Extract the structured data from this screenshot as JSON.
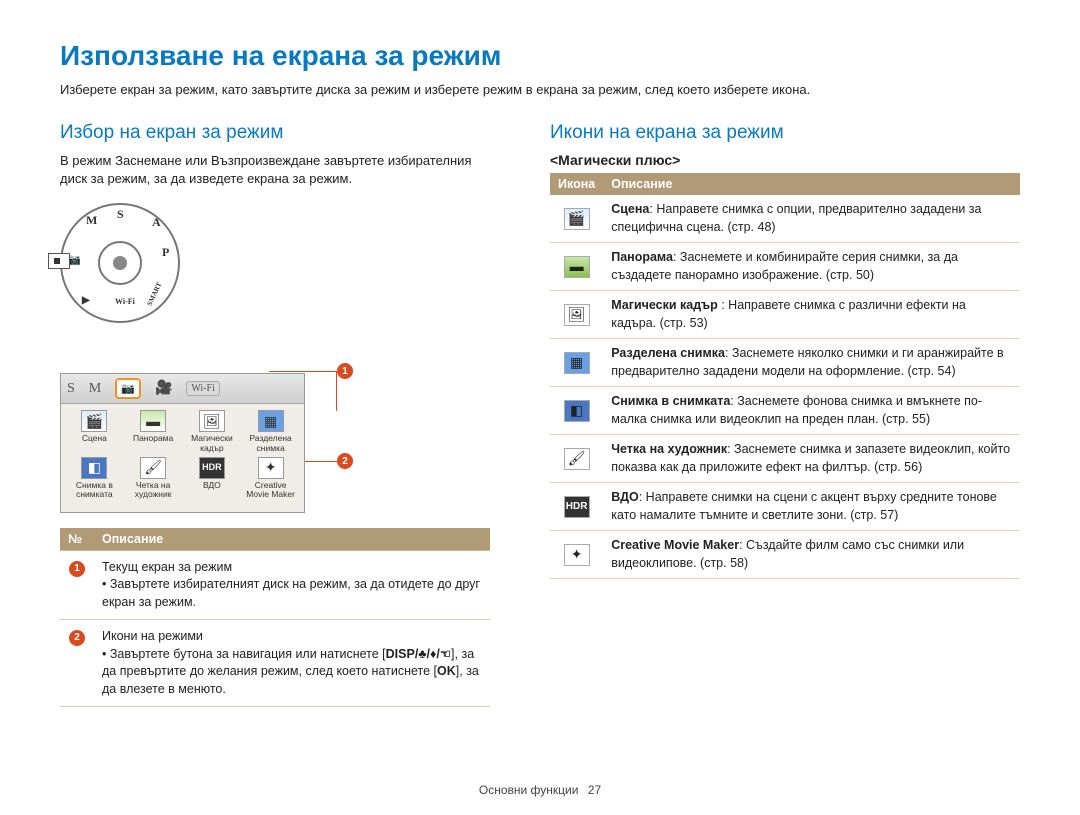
{
  "page": {
    "title": "Използване на екрана за режим",
    "intro": "Изберете екран за режим, като завъртите диска за режим и изберете режим в екрана за режим, след което изберете икона.",
    "footer_label": "Основни функции",
    "footer_page": "27"
  },
  "left": {
    "section_title": "Избор на екран за режим",
    "section_text": "В режим Заснемане или Възпроизвеждане завъртете избирателния диск за режим, за да изведете екрана за режим.",
    "dial": {
      "s": "S",
      "a": "A",
      "m": "M",
      "p": "P",
      "cam": "📷",
      "play": "▶",
      "wifi": "Wi-Fi",
      "smart": "SMART"
    },
    "screen_top": {
      "s": "S",
      "m": "M",
      "sel": "📷",
      "vid": "🎥",
      "wifi": "Wi-Fi"
    },
    "screen_icons": {
      "row1": [
        {
          "glyph": "🎬",
          "label": "Сцена"
        },
        {
          "glyph": "▬",
          "label": "Панорама"
        },
        {
          "glyph": "🖼",
          "label": "Магически кадър"
        },
        {
          "glyph": "▦",
          "label": "Разделена снимка"
        }
      ],
      "row2": [
        {
          "glyph": "◧",
          "label": "Снимка в снимката"
        },
        {
          "glyph": "🖌",
          "label": "Четка на художник"
        },
        {
          "glyph": "HDR",
          "label": "ВДО"
        },
        {
          "glyph": "✦",
          "label": "Creative Movie Maker"
        }
      ]
    },
    "table": {
      "head_num": "№",
      "head_desc": "Описание",
      "rows": [
        {
          "n": "1",
          "line1": "Текущ екран за режим",
          "bullets": [
            "Завъртете избирателният диск на режим, за да отидете до друг екран за режим."
          ]
        },
        {
          "n": "2",
          "line1": "Икони на режими",
          "bullets": [
            "Завъртете бутона за навигация или натиснете [DISP/♣/♦/☜], за да превъртите до желания режим, след което натиснете [OK], за да влезете в менюто."
          ]
        }
      ]
    }
  },
  "right": {
    "section_title": "Икони на екрана за режим",
    "subtitle": "<Магически плюс>",
    "table": {
      "head_icon": "Икона",
      "head_desc": "Описание",
      "rows": [
        {
          "icon_class": "ic-scene",
          "glyph": "🎬",
          "bold": "Сцена",
          "rest": ": Направете снимка с опции, предварително зададени за специфична сцена. (стр. 48)"
        },
        {
          "icon_class": "ic-pano",
          "glyph": "▬",
          "bold": "Панорама",
          "rest": ": Заснемете и комбинирайте серия снимки, за да създадете панорамно изображение. (стр. 50)"
        },
        {
          "icon_class": "ic-frame",
          "glyph": "🖼",
          "bold": "Магически кадър",
          "rest": " : Направете снимка с различни ефекти на кадъра. (стр. 53)"
        },
        {
          "icon_class": "ic-split",
          "glyph": "▦",
          "bold": "Разделена снимка",
          "rest": ": Заснемете няколко снимки и ги аранжирайте в предварително зададени модели на оформление. (стр. 54)"
        },
        {
          "icon_class": "ic-pip",
          "glyph": "◧",
          "bold": "Снимка в снимката",
          "rest": ": Заснемете фонова снимка и вмъкнете по-малка снимка или видеоклип на преден план. (стр. 55)"
        },
        {
          "icon_class": "ic-brush",
          "glyph": "🖌",
          "bold": "Четка на художник",
          "rest": ": Заснемете снимка и запазете видеоклип, който показва как да приложите ефект на филтър. (стр. 56)"
        },
        {
          "icon_class": "ic-hdr",
          "glyph": "HDR",
          "bold": "ВДО",
          "rest": ": Направете снимки на сцени с акцент върху средните тонове като намалите тъмните и светлите зони. (стр. 57)"
        },
        {
          "icon_class": "ic-cmm",
          "glyph": "✦",
          "bold": "Creative Movie Maker",
          "rest": ": Създайте филм само със снимки или видеоклипове. (стр. 58)"
        }
      ]
    }
  }
}
